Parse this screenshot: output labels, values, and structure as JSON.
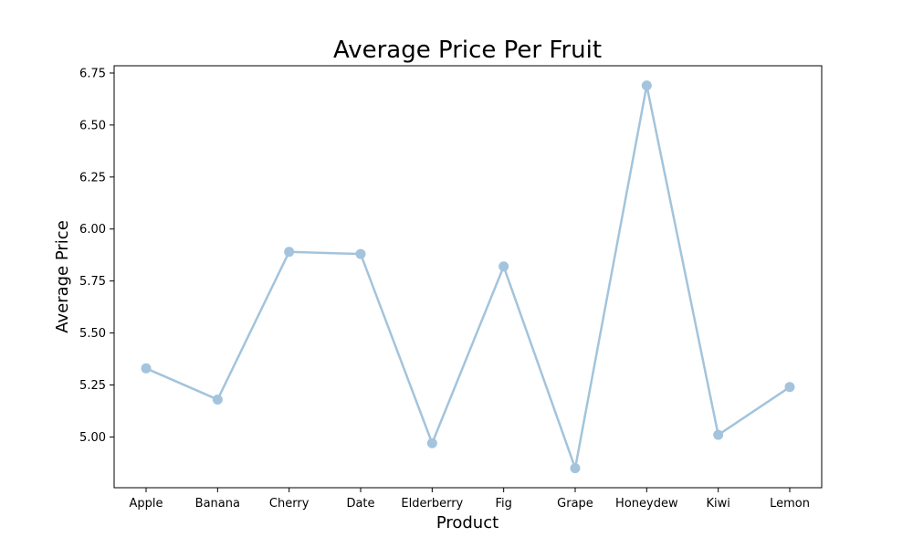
{
  "chart_data": {
    "type": "line",
    "title": "Average Price Per Fruit",
    "xlabel": "Product",
    "ylabel": "Average Price",
    "categories": [
      "Apple",
      "Banana",
      "Cherry",
      "Date",
      "Elderberry",
      "Fig",
      "Grape",
      "Honeydew",
      "Kiwi",
      "Lemon"
    ],
    "series": [
      {
        "values": [
          5.33,
          5.18,
          5.89,
          5.88,
          4.97,
          5.82,
          4.85,
          6.69,
          5.01,
          5.24
        ]
      }
    ],
    "ylim": [
      4.756,
      6.785
    ],
    "yticks": [
      5.0,
      5.25,
      5.5,
      5.75,
      6.0,
      6.25,
      6.5,
      6.75
    ],
    "ytick_labels": [
      "5.00",
      "5.25",
      "5.50",
      "5.75",
      "6.00",
      "6.25",
      "6.50",
      "6.75"
    ],
    "line_color": "#a3c4dc",
    "marker": "circle",
    "grid": false,
    "legend": "none"
  }
}
